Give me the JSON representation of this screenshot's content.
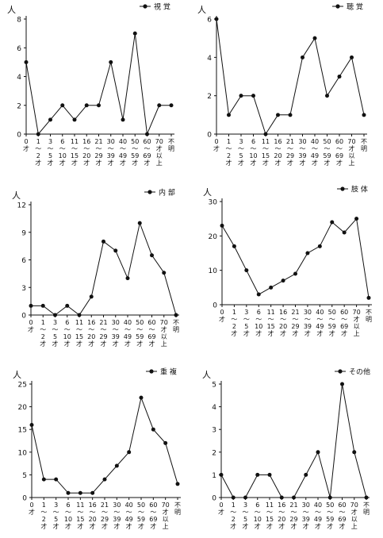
{
  "unit_label": "人",
  "category_labels": [
    [
      "0",
      "才"
    ],
    [
      "1",
      "〜",
      "2",
      "才"
    ],
    [
      "3",
      "〜",
      "5",
      "才"
    ],
    [
      "6",
      "〜",
      "10",
      "才"
    ],
    [
      "11",
      "〜",
      "15",
      "才"
    ],
    [
      "16",
      "〜",
      "20",
      "才"
    ],
    [
      "21",
      "〜",
      "29",
      "才"
    ],
    [
      "30",
      "〜",
      "39",
      "才"
    ],
    [
      "40",
      "〜",
      "49",
      "才"
    ],
    [
      "50",
      "〜",
      "59",
      "才"
    ],
    [
      "60",
      "〜",
      "69",
      "才"
    ],
    [
      "70",
      "才",
      "以",
      "上"
    ],
    [
      "不",
      "明"
    ]
  ],
  "chart_data": [
    {
      "type": "line",
      "legend": "視 覚",
      "categories": [
        "0才",
        "1〜2才",
        "3〜5才",
        "6〜10才",
        "11〜15才",
        "16〜20才",
        "21〜29才",
        "30〜39才",
        "40〜49才",
        "50〜59才",
        "60〜69才",
        "70才以上",
        "不明"
      ],
      "series": [
        {
          "name": "視 覚",
          "values": [
            5,
            0,
            1,
            2,
            1,
            2,
            2,
            5,
            1,
            7,
            0,
            2,
            2
          ]
        }
      ],
      "ylim": [
        0,
        8
      ],
      "yticks": [
        0,
        2,
        4,
        6,
        8
      ],
      "ylabel": "人",
      "legend_position": "top-right",
      "grid": false
    },
    {
      "type": "line",
      "legend": "聴 覚",
      "categories": [
        "0才",
        "1〜2才",
        "3〜5才",
        "6〜10才",
        "11〜15才",
        "16〜20才",
        "21〜29才",
        "30〜39才",
        "40〜49才",
        "50〜59才",
        "60〜69才",
        "70才以上",
        "不明"
      ],
      "series": [
        {
          "name": "聴 覚",
          "values": [
            6,
            1,
            2,
            2,
            0,
            1,
            1,
            4,
            5,
            2,
            3,
            4,
            1
          ]
        }
      ],
      "ylim": [
        0,
        6
      ],
      "yticks": [
        0,
        2,
        4,
        6
      ],
      "ylabel": "人",
      "legend_position": "top-right",
      "grid": false
    },
    {
      "type": "line",
      "legend": "内 部",
      "categories": [
        "0才",
        "1〜2才",
        "3〜5才",
        "6〜10才",
        "11〜15才",
        "16〜20才",
        "21〜29才",
        "30〜39才",
        "40〜49才",
        "50〜59才",
        "60〜69才",
        "70才以上",
        "不明"
      ],
      "series": [
        {
          "name": "内 部",
          "values": [
            1,
            1,
            0,
            1,
            0,
            2,
            8,
            7,
            4,
            10,
            6.5,
            4.6,
            0
          ]
        }
      ],
      "ylim": [
        0,
        12
      ],
      "yticks": [
        0,
        3,
        6,
        9,
        12
      ],
      "ylabel": "人",
      "legend_position": "top-right",
      "grid": false
    },
    {
      "type": "line",
      "legend": "肢 体",
      "categories": [
        "0才",
        "1〜2才",
        "3〜5才",
        "6〜10才",
        "11〜15才",
        "16〜20才",
        "21〜29才",
        "30〜39才",
        "40〜49才",
        "50〜59才",
        "60〜69才",
        "70才以上",
        "不明"
      ],
      "series": [
        {
          "name": "肢 体",
          "values": [
            23,
            17,
            10,
            3,
            5,
            7,
            9,
            15,
            17,
            24,
            21,
            25,
            2
          ]
        }
      ],
      "ylim": [
        0,
        30
      ],
      "yticks": [
        0,
        10,
        20,
        30
      ],
      "ylabel": "人",
      "legend_position": "top-right",
      "grid": false
    },
    {
      "type": "line",
      "legend": "重 複",
      "categories": [
        "0才",
        "1〜2才",
        "3〜5才",
        "6〜10才",
        "11〜15才",
        "16〜20才",
        "21〜29才",
        "30〜39才",
        "40〜49才",
        "50〜59才",
        "60〜69才",
        "70才以上",
        "不明"
      ],
      "series": [
        {
          "name": "重 複",
          "values": [
            16,
            4,
            4,
            1,
            1,
            1,
            4,
            7,
            10,
            22,
            15,
            12,
            3
          ]
        }
      ],
      "ylim": [
        0,
        25
      ],
      "yticks": [
        0,
        5,
        10,
        15,
        20,
        25
      ],
      "ylabel": "人",
      "legend_position": "top-right",
      "grid": false
    },
    {
      "type": "line",
      "legend": "その他",
      "categories": [
        "0才",
        "1〜2才",
        "3〜5才",
        "6〜10才",
        "11〜15才",
        "16〜20才",
        "21〜29才",
        "30〜39才",
        "40〜49才",
        "50〜59才",
        "60〜69才",
        "70才以上",
        "不明"
      ],
      "series": [
        {
          "name": "その他",
          "values": [
            1,
            0,
            0,
            1,
            1,
            0,
            0,
            1,
            2,
            0,
            5,
            2,
            0
          ]
        }
      ],
      "ylim": [
        0,
        5
      ],
      "yticks": [
        0,
        1,
        2,
        3,
        4,
        5
      ],
      "ylabel": "人",
      "legend_position": "top-right",
      "grid": false
    }
  ]
}
